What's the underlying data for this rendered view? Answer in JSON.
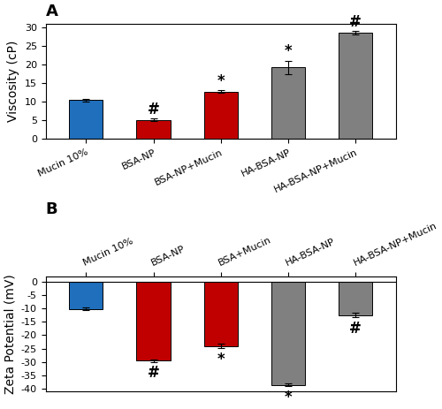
{
  "chart_data": [
    {
      "type": "bar",
      "title": "A",
      "categories": [
        "Mucin 10%",
        "BSA-NP",
        "BSA-NP+Mucin",
        "HA-BSA-NP",
        "HA-BSA-NP+Mucin"
      ],
      "values": [
        10.4,
        5.1,
        12.7,
        19.2,
        28.5
      ],
      "errors": [
        0.3,
        0.3,
        0.3,
        1.8,
        0.5
      ],
      "colors": [
        "#1f6fbc",
        "#c00000",
        "#c00000",
        "#808080",
        "#808080"
      ],
      "y_label": "Viscosity (cP)",
      "ylim": [
        0,
        31
      ],
      "yticks": [
        0,
        5,
        10,
        15,
        20,
        25,
        30
      ],
      "annotations": [
        {
          "text": "#",
          "category": "BSA-NP",
          "y": 5.7
        },
        {
          "text": "*",
          "category": "BSA-NP+Mucin",
          "y": 13.3
        },
        {
          "text": "*",
          "category": "HA-BSA-NP",
          "y": 21.3
        },
        {
          "text": "#",
          "category": "HA-BSA-NP+Mucin",
          "y": 29.3
        }
      ]
    },
    {
      "type": "bar",
      "title": "B",
      "categories": [
        "Mucin 10%",
        "BSA-NP",
        "BSA+Mucin",
        "HA-BSA-NP",
        "HA-BSA-NP+Mucin"
      ],
      "values": [
        -10.2,
        -29.5,
        -24.0,
        -38.5,
        -12.5
      ],
      "errors": [
        0.5,
        0.5,
        0.8,
        0.5,
        0.8
      ],
      "colors": [
        "#1f6fbc",
        "#c00000",
        "#c00000",
        "#808080",
        "#808080"
      ],
      "y_label": "Zeta Potential (mV)",
      "ylim": [
        -41,
        2
      ],
      "yticks": [
        0,
        -5,
        -10,
        -15,
        -20,
        -25,
        -30,
        -35,
        -40
      ],
      "annotations": [
        {
          "text": "#",
          "category": "BSA-NP",
          "y": -31.2
        },
        {
          "text": "*",
          "category": "BSA+Mucin",
          "y": -26.0
        },
        {
          "text": "*",
          "category": "HA-BSA-NP",
          "y": -40.2
        },
        {
          "text": "#",
          "category": "HA-BSA-NP+Mucin",
          "y": -14.5
        }
      ]
    }
  ]
}
